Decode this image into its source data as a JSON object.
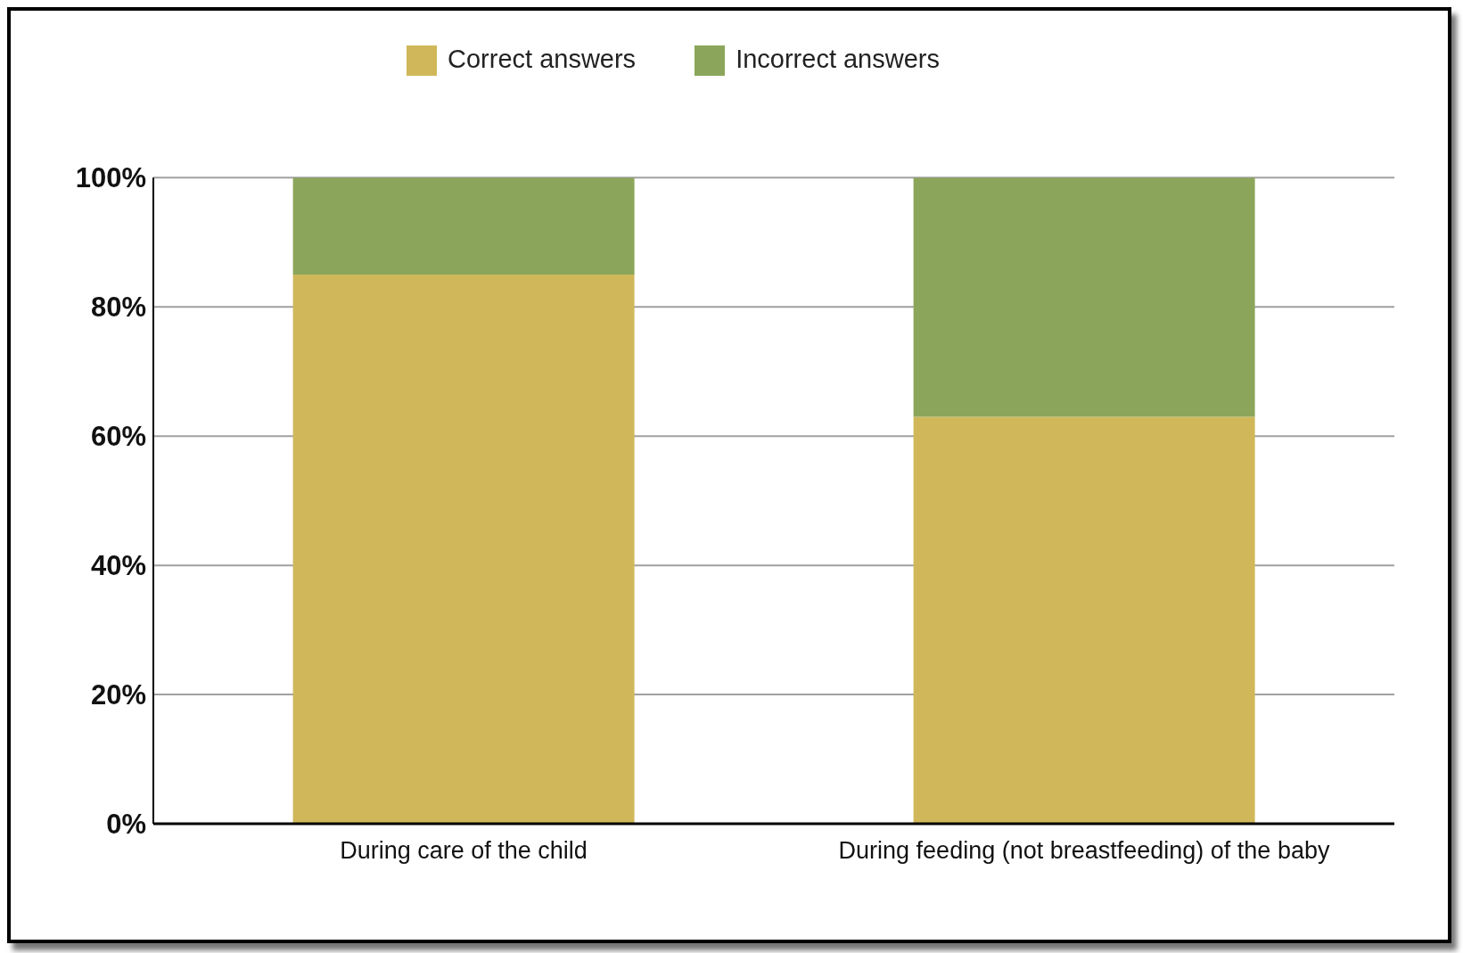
{
  "chart_data": {
    "type": "bar",
    "stacked": true,
    "categories": [
      "During care of the child",
      "During feeding (not breastfeeding) of the baby"
    ],
    "series": [
      {
        "name": "Correct answers",
        "color": "#d0b85a",
        "values": [
          85,
          63
        ]
      },
      {
        "name": "Incorrect answers",
        "color": "#8ba65a",
        "values": [
          15,
          37
        ]
      }
    ],
    "ylim": [
      0,
      100
    ],
    "yticks": [
      {
        "value": 0,
        "label": "0%"
      },
      {
        "value": 20,
        "label": "20%"
      },
      {
        "value": 40,
        "label": "40%"
      },
      {
        "value": 60,
        "label": "60%"
      },
      {
        "value": 80,
        "label": "80%"
      },
      {
        "value": 100,
        "label": "100%"
      }
    ],
    "grid": "y",
    "legend": "top"
  }
}
